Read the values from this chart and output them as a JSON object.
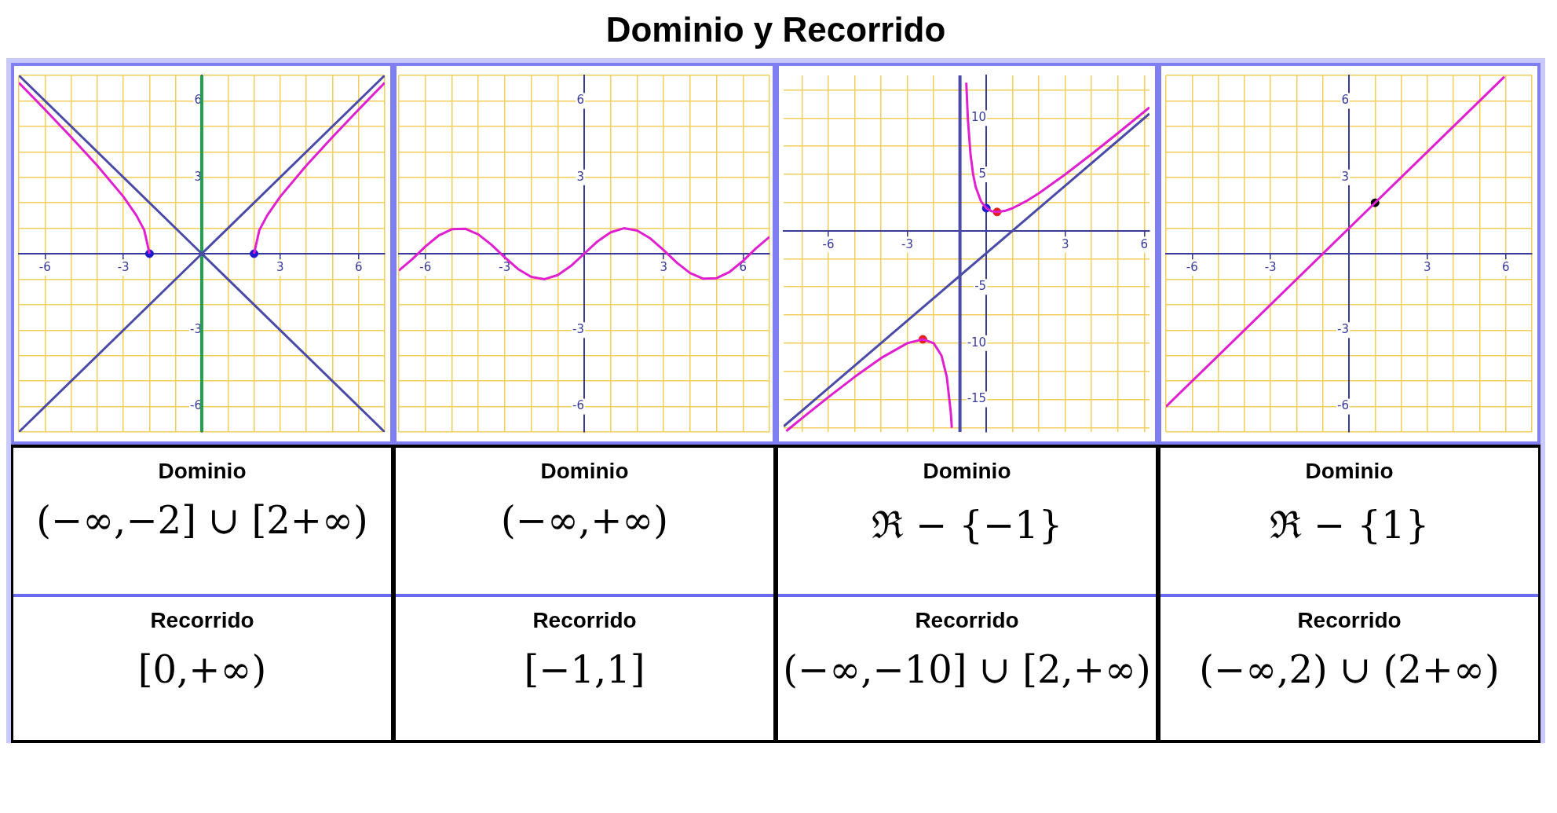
{
  "chart_data": [
    {
      "type": "other",
      "title": "Dominio y Recorrido"
    },
    {
      "type": "line",
      "xlim": [
        -7,
        7
      ],
      "ylim": [
        -7,
        7
      ],
      "grid": true,
      "legend": false,
      "marker": "none",
      "xticks": [
        {
          "value": -7,
          "label": null
        },
        -6,
        {
          "value": -5,
          "label": null
        },
        {
          "value": -4,
          "label": null
        },
        -3,
        {
          "value": -2,
          "label": null
        },
        {
          "value": -1,
          "label": null
        },
        {
          "value": 0,
          "label": null
        },
        {
          "value": 1,
          "label": null
        },
        {
          "value": 2,
          "label": null
        },
        3,
        {
          "value": 4,
          "label": null
        },
        {
          "value": 5,
          "label": null
        },
        6,
        {
          "value": 7,
          "label": null
        }
      ],
      "yticks": [
        {
          "value": -7,
          "label": null
        },
        -6,
        {
          "value": -5,
          "label": null
        },
        {
          "value": -4,
          "label": null
        },
        -3,
        {
          "value": -2,
          "label": null
        },
        {
          "value": -1,
          "label": null
        },
        {
          "value": 0,
          "label": null
        },
        {
          "value": 1,
          "label": null
        },
        {
          "value": 2,
          "label": null
        },
        3,
        {
          "value": 4,
          "label": null
        },
        {
          "value": 5,
          "label": null
        },
        6,
        {
          "value": 7,
          "label": null
        }
      ],
      "ref_lines": [
        {
          "axis": "x",
          "value": 0,
          "color": "#22a050"
        }
      ],
      "series": [
        {
          "color": "#e020d0",
          "x": [
            -7,
            -6,
            -5,
            -4,
            -3,
            -2.5,
            -2.2,
            -2
          ],
          "values": [
            6.71,
            5.66,
            4.58,
            3.46,
            2.24,
            1.5,
            0.92,
            0
          ]
        },
        {
          "color": "#e020d0",
          "x": [
            2,
            2.2,
            2.5,
            3,
            4,
            5,
            6,
            7
          ],
          "values": [
            0,
            0.92,
            1.5,
            2.24,
            3.46,
            4.58,
            5.66,
            6.71
          ]
        },
        {
          "color": "#4a4aa8",
          "x": [
            -7,
            7
          ],
          "values": [
            -7,
            7
          ]
        },
        {
          "color": "#4a4aa8",
          "x": [
            -7,
            7
          ],
          "values": [
            7,
            -7
          ]
        },
        {
          "type": "scatter",
          "marker": "circle",
          "color": "#1a1ad0",
          "x": [
            -2,
            2
          ],
          "values": [
            0,
            0
          ]
        }
      ],
      "annotations": [
        "Dominio",
        "(−∞,−2] ∪ [2+∞)",
        "Recorrido",
        "[0,+∞)"
      ]
    },
    {
      "type": "line",
      "xlim": [
        -7,
        7
      ],
      "ylim": [
        -7,
        7
      ],
      "grid": true,
      "legend": false,
      "marker": "none",
      "xticks": [
        {
          "value": -7,
          "label": null
        },
        -6,
        {
          "value": -5,
          "label": null
        },
        {
          "value": -4,
          "label": null
        },
        -3,
        {
          "value": -2,
          "label": null
        },
        {
          "value": -1,
          "label": null
        },
        {
          "value": 0,
          "label": null
        },
        {
          "value": 1,
          "label": null
        },
        {
          "value": 2,
          "label": null
        },
        3,
        {
          "value": 4,
          "label": null
        },
        {
          "value": 5,
          "label": null
        },
        6,
        {
          "value": 7,
          "label": null
        }
      ],
      "yticks": [
        {
          "value": -7,
          "label": null
        },
        -6,
        {
          "value": -5,
          "label": null
        },
        {
          "value": -4,
          "label": null
        },
        -3,
        {
          "value": -2,
          "label": null
        },
        {
          "value": -1,
          "label": null
        },
        {
          "value": 0,
          "label": null
        },
        {
          "value": 1,
          "label": null
        },
        {
          "value": 2,
          "label": null
        },
        3,
        {
          "value": 4,
          "label": null
        },
        {
          "value": 5,
          "label": null
        },
        6,
        {
          "value": 7,
          "label": null
        }
      ],
      "series": [
        {
          "color": "#e020d0",
          "x": [
            -7,
            -6.5,
            -6,
            -5.5,
            -5,
            -4.5,
            -4,
            -3.5,
            -3,
            -2.5,
            -2,
            -1.5,
            -1,
            -0.5,
            0,
            0.5,
            1,
            1.5,
            2,
            2.5,
            3,
            3.5,
            4,
            4.5,
            5,
            5.5,
            6,
            6.5,
            7
          ],
          "values": [
            -0.66,
            -0.22,
            0.28,
            0.71,
            0.96,
            0.98,
            0.76,
            0.35,
            -0.14,
            -0.6,
            -0.91,
            -1,
            -0.84,
            -0.48,
            0,
            0.48,
            0.84,
            1,
            0.91,
            0.6,
            0.14,
            -0.35,
            -0.76,
            -0.98,
            -0.96,
            -0.71,
            -0.28,
            0.22,
            0.66
          ]
        }
      ],
      "annotations": [
        "Dominio",
        "(−∞,+∞)",
        "Recorrido",
        "[−1,1]"
      ]
    },
    {
      "type": "line",
      "xlim": [
        -7.7,
        6.2
      ],
      "ylim": [
        -17.9,
        13.8
      ],
      "grid": true,
      "legend": false,
      "marker": "none",
      "xticks": [
        {
          "value": -7,
          "label": null
        },
        -6,
        {
          "value": -5,
          "label": null
        },
        {
          "value": -4,
          "label": null
        },
        -3,
        {
          "value": -2,
          "label": null
        },
        {
          "value": -1,
          "label": null
        },
        {
          "value": 0,
          "label": null
        },
        {
          "value": 1,
          "label": null
        },
        {
          "value": 2,
          "label": null
        },
        3,
        {
          "value": 4,
          "label": null
        },
        {
          "value": 5,
          "label": null
        },
        6
      ],
      "yticks": [
        {
          "value": -17.5,
          "label": null
        },
        -15,
        {
          "value": -12.5,
          "label": null
        },
        -10,
        {
          "value": -7.5,
          "label": null
        },
        -5,
        {
          "value": -2.5,
          "label": null
        },
        {
          "value": 0,
          "label": null
        },
        {
          "value": 2.5,
          "label": null
        },
        5,
        {
          "value": 7.5,
          "label": null
        },
        10,
        {
          "value": 12.5,
          "label": null
        }
      ],
      "ref_lines": [
        {
          "axis": "x",
          "value": -1,
          "color": "#4a4aa8"
        }
      ],
      "series": [
        {
          "color": "#e020d0",
          "x": [
            -0.76,
            -0.7,
            -0.6,
            -0.5,
            -0.4,
            -0.2,
            0,
            0.2,
            0.41,
            0.7,
            1,
            1.5,
            2,
            3,
            4,
            5,
            6,
            6.2
          ],
          "values": [
            13.15,
            9.93,
            6.8,
            5,
            3.87,
            2.6,
            2,
            1.73,
            1.66,
            1.75,
            2,
            2.6,
            3.33,
            5,
            6.8,
            8.67,
            10.57,
            10.96
          ]
        },
        {
          "color": "#e020d0",
          "x": [
            -7.6,
            -7,
            -6,
            -5,
            -4,
            -3,
            -2.41,
            -2,
            -1.7,
            -1.5,
            -1.35,
            -1.31
          ],
          "values": [
            -17.81,
            -16.67,
            -14.8,
            -13,
            -11.33,
            -10,
            -9.66,
            -10,
            -11.11,
            -13,
            -16.13,
            -17.52
          ]
        },
        {
          "color": "#4a4aa8",
          "x": [
            -7.7,
            6.2
          ],
          "values": [
            -17.4,
            10.4
          ]
        },
        {
          "type": "scatter",
          "marker": "circle",
          "color": "#1a1ad0",
          "x": [
            0
          ],
          "values": [
            2
          ]
        },
        {
          "type": "scatter",
          "marker": "circle",
          "color": "#e02020",
          "x": [
            0.41,
            -2.41
          ],
          "values": [
            1.66,
            -9.66
          ]
        }
      ],
      "annotations": [
        "Dominio",
        "ℜ − {−1}",
        "Recorrido",
        "(−∞,−10] ∪ [2,+∞)"
      ]
    },
    {
      "type": "line",
      "xlim": [
        -7,
        7
      ],
      "ylim": [
        -7,
        7
      ],
      "grid": true,
      "legend": false,
      "marker": "none",
      "xticks": [
        {
          "value": -7,
          "label": null
        },
        -6,
        {
          "value": -5,
          "label": null
        },
        {
          "value": -4,
          "label": null
        },
        -3,
        {
          "value": -2,
          "label": null
        },
        {
          "value": -1,
          "label": null
        },
        {
          "value": 0,
          "label": null
        },
        {
          "value": 1,
          "label": null
        },
        {
          "value": 2,
          "label": null
        },
        3,
        {
          "value": 4,
          "label": null
        },
        {
          "value": 5,
          "label": null
        },
        6,
        {
          "value": 7,
          "label": null
        }
      ],
      "yticks": [
        {
          "value": -7,
          "label": null
        },
        -6,
        {
          "value": -5,
          "label": null
        },
        {
          "value": -4,
          "label": null
        },
        -3,
        {
          "value": -2,
          "label": null
        },
        {
          "value": -1,
          "label": null
        },
        {
          "value": 0,
          "label": null
        },
        {
          "value": 1,
          "label": null
        },
        {
          "value": 2,
          "label": null
        },
        3,
        {
          "value": 4,
          "label": null
        },
        {
          "value": 5,
          "label": null
        },
        6,
        {
          "value": 7,
          "label": null
        }
      ],
      "series": [
        {
          "color": "#e020d0",
          "x": [
            -7,
            5.95
          ],
          "values": [
            -6,
            6.95
          ]
        },
        {
          "type": "scatter",
          "marker": "circle",
          "color": "#000000",
          "x": [
            1
          ],
          "values": [
            2
          ]
        }
      ],
      "annotations": [
        "Dominio",
        "ℜ − {1}",
        "Recorrido",
        "(−∞,2) ∪ (2+∞)"
      ]
    }
  ]
}
